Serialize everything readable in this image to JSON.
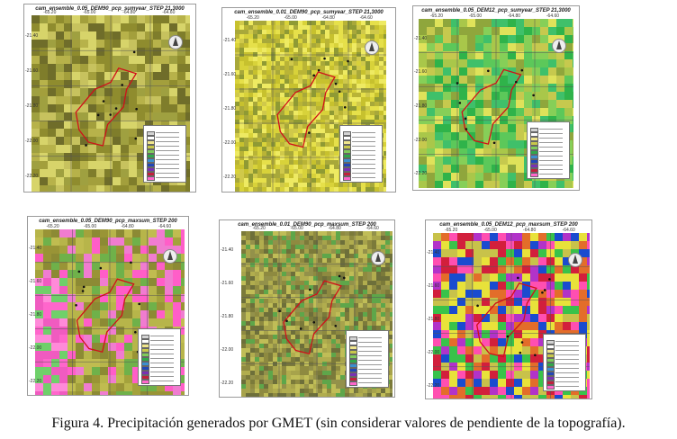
{
  "panels": [
    {
      "title": "cam_ensemble_0.05_DEM90_pcp_sumyear_STEP 21,3000",
      "seed": 11,
      "palette": "olive",
      "xt": [
        "-65.20",
        "-65.00",
        "-64.80",
        "-64.60"
      ],
      "yt": [
        "-21.40",
        "-21.60",
        "-21.80",
        "-22.00",
        "-22.20"
      ]
    },
    {
      "title": "cam_ensemble_0.01_DEM90_pcp_sumyear_STEP 21,3000",
      "seed": 23,
      "palette": "yellow",
      "xt": [
        "-65.20",
        "-65.00",
        "-64.80",
        "-64.60"
      ],
      "yt": [
        "-21.40",
        "-21.60",
        "-21.80",
        "-22.00",
        "-22.20"
      ]
    },
    {
      "title": "cam_ensemble_0.05_DEM12_pcp_sumyear_STEP 21,3000",
      "seed": 37,
      "palette": "green",
      "xt": [
        "-65.20",
        "-65.00",
        "-64.80",
        "-64.60"
      ],
      "yt": [
        "-21.40",
        "-21.60",
        "-21.80",
        "-22.00",
        "-22.20"
      ]
    },
    {
      "title": "cam_ensemble_0.05_DEM90_pcp_maxsum_STEP 200",
      "seed": 41,
      "palette": "mixed",
      "xt": [
        "-65.20",
        "-65.00",
        "-64.80",
        "-64.60"
      ],
      "yt": [
        "-21.40",
        "-21.60",
        "-21.80",
        "-22.00",
        "-22.20"
      ]
    },
    {
      "title": "cam_ensemble_0.01_DEM90_pcp_maxsum_STEP 200",
      "seed": 53,
      "palette": "olive2",
      "xt": [
        "-65.20",
        "-65.00",
        "-64.80",
        "-64.60"
      ],
      "yt": [
        "-21.40",
        "-21.60",
        "-21.80",
        "-22.00",
        "-22.20"
      ]
    },
    {
      "title": "cam_ensemble_0.05_DEM12_pcp_maxsum_STEP 200",
      "seed": 67,
      "palette": "hot",
      "xt": [
        "-65.20",
        "-65.00",
        "-64.80",
        "-64.60"
      ],
      "yt": [
        "-21.40",
        "-21.60",
        "-21.80",
        "-22.00",
        "-22.20"
      ]
    }
  ],
  "caption": "Figura 4. Precipitación generados por GMET (sin considerar valores de pendiente de la topografía)."
}
